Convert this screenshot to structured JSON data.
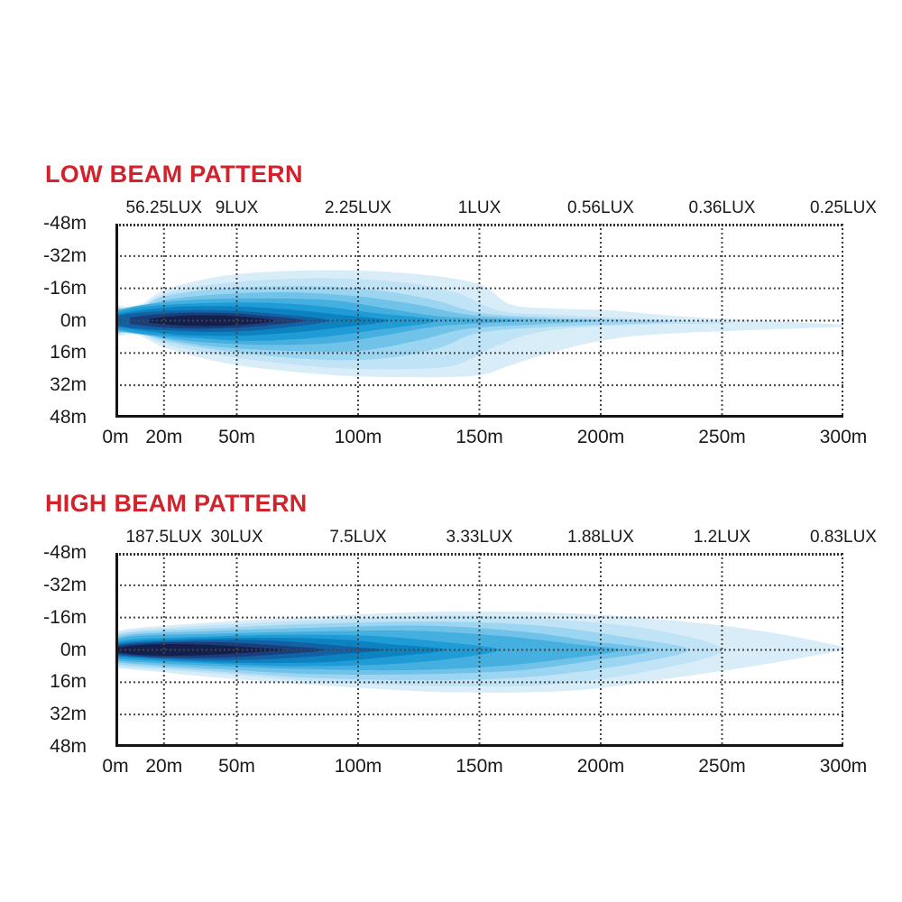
{
  "colors": {
    "background": "#ffffff",
    "title_red": "#d2222b",
    "text": "#1a1a1a",
    "grid": "#454545",
    "border_solid": "#141414",
    "border_dotted": "#333333"
  },
  "chart_data": [
    {
      "type": "area",
      "title": "LOW BEAM PATTERN",
      "top_axis": {
        "unit": "LUX",
        "labels": [
          "56.25LUX",
          "9LUX",
          "2.25LUX",
          "1LUX",
          "0.56LUX",
          "0.36LUX",
          "0.25LUX"
        ],
        "at_distance_m": [
          20,
          50,
          100,
          150,
          200,
          250,
          300
        ]
      },
      "x_axis": {
        "unit": "m",
        "tick_labels": [
          "0m",
          "20m",
          "50m",
          "100m",
          "150m",
          "200m",
          "250m",
          "300m"
        ],
        "tick_values_m": [
          0,
          20,
          50,
          100,
          150,
          200,
          250,
          300
        ],
        "grid_values_m": [
          20,
          50,
          100,
          150,
          200,
          250
        ]
      },
      "y_axis": {
        "unit": "m",
        "tick_labels": [
          "-48m",
          "-32m",
          "-16m",
          "0m",
          "16m",
          "32m",
          "48m"
        ],
        "tick_values_m": [
          -48,
          -32,
          -16,
          0,
          16,
          32,
          48
        ],
        "grid_values_m": [
          -32,
          -16,
          0,
          16,
          32
        ]
      },
      "xlim": [
        0,
        300
      ],
      "ylim": [
        -48,
        48
      ],
      "grid": true,
      "contours_format": "[distance_m, halfwidth_above_center_m, halfwidth_below_center_m]",
      "contours": [
        {
          "color": "#d9edf9",
          "profile": [
            [
              0,
              8,
              8
            ],
            [
              9,
              7,
              7
            ],
            [
              22,
              16,
              14
            ],
            [
              50,
              23,
              22
            ],
            [
              90,
              25,
              27
            ],
            [
              125,
              23,
              28
            ],
            [
              150,
              18,
              27
            ],
            [
              163,
              8,
              22
            ],
            [
              182,
              6,
              15
            ],
            [
              205,
              5,
              9
            ],
            [
              235,
              2,
              6
            ],
            [
              300,
              -2,
              3
            ]
          ]
        },
        {
          "color": "#c0e3f6",
          "profile": [
            [
              0,
              7,
              7
            ],
            [
              9,
              6,
              6
            ],
            [
              22,
              14,
              12
            ],
            [
              48,
              19,
              18
            ],
            [
              85,
              21,
              23
            ],
            [
              118,
              19,
              24
            ],
            [
              140,
              14,
              22
            ],
            [
              158,
              5,
              12
            ],
            [
              178,
              3,
              5
            ],
            [
              215,
              1,
              2
            ],
            [
              255,
              -1,
              1
            ]
          ]
        },
        {
          "color": "#9cd5f1",
          "profile": [
            [
              0,
              6.5,
              6.5
            ],
            [
              9,
              5.5,
              5.5
            ],
            [
              20,
              12,
              10
            ],
            [
              45,
              16,
              15
            ],
            [
              80,
              17,
              19
            ],
            [
              108,
              15,
              19
            ],
            [
              132,
              10,
              14
            ],
            [
              150,
              4,
              6
            ],
            [
              180,
              1.5,
              3
            ],
            [
              230,
              -0.5,
              0.5
            ]
          ]
        },
        {
          "color": "#70c2e9",
          "profile": [
            [
              0,
              6,
              6
            ],
            [
              9,
              5,
              5
            ],
            [
              20,
              10,
              9
            ],
            [
              42,
              13,
              13
            ],
            [
              72,
              14,
              15
            ],
            [
              100,
              12,
              15
            ],
            [
              124,
              8,
              10
            ],
            [
              145,
              3,
              4
            ],
            [
              172,
              1,
              2
            ],
            [
              200,
              0,
              0
            ]
          ]
        },
        {
          "color": "#45afe0",
          "profile": [
            [
              0,
              5,
              5
            ],
            [
              12,
              8,
              7
            ],
            [
              35,
              10.5,
              10.5
            ],
            [
              62,
              11,
              12
            ],
            [
              90,
              10,
              11
            ],
            [
              112,
              6,
              7
            ],
            [
              135,
              2,
              2.5
            ],
            [
              168,
              0,
              0
            ]
          ]
        },
        {
          "color": "#1f9cd6",
          "profile": [
            [
              0,
              4,
              4
            ],
            [
              12,
              7,
              6.5
            ],
            [
              32,
              8.5,
              8.5
            ],
            [
              56,
              9,
              10
            ],
            [
              82,
              7.5,
              8.5
            ],
            [
              105,
              4,
              5
            ],
            [
              132,
              0,
              0
            ]
          ]
        },
        {
          "color": "#0d82c0",
          "profile": [
            [
              0,
              3,
              3
            ],
            [
              12,
              5.5,
              5
            ],
            [
              28,
              7,
              7
            ],
            [
              50,
              7,
              7.5
            ],
            [
              72,
              5.5,
              6
            ],
            [
              92,
              3,
              3.5
            ],
            [
              112,
              0,
              0
            ]
          ]
        },
        {
          "color": "#1261a5",
          "profile": [
            [
              0,
              2.3,
              2.3
            ],
            [
              10,
              4,
              4
            ],
            [
              26,
              5,
              5
            ],
            [
              45,
              5,
              5.5
            ],
            [
              65,
              3.5,
              4
            ],
            [
              88,
              0,
              0
            ]
          ]
        },
        {
          "color": "#1a3d7c",
          "profile": [
            [
              6,
              1.6,
              1.6
            ],
            [
              16,
              3,
              3
            ],
            [
              30,
              3.9,
              3.9
            ],
            [
              48,
              3.6,
              3.6
            ],
            [
              62,
              2.3,
              2.3
            ],
            [
              78,
              0,
              0
            ]
          ]
        },
        {
          "color": "#13204d",
          "profile": [
            [
              14,
              1,
              1
            ],
            [
              24,
              2.2,
              2.2
            ],
            [
              36,
              2.7,
              2.7
            ],
            [
              50,
              2.2,
              2.2
            ],
            [
              66,
              0,
              0
            ]
          ]
        }
      ]
    },
    {
      "type": "area",
      "title": "HIGH BEAM PATTERN",
      "top_axis": {
        "unit": "LUX",
        "labels": [
          "187.5LUX",
          "30LUX",
          "7.5LUX",
          "3.33LUX",
          "1.88LUX",
          "1.2LUX",
          "0.83LUX"
        ],
        "at_distance_m": [
          20,
          50,
          100,
          150,
          200,
          250,
          300
        ]
      },
      "x_axis": {
        "unit": "m",
        "tick_labels": [
          "0m",
          "20m",
          "50m",
          "100m",
          "150m",
          "200m",
          "250m",
          "300m"
        ],
        "tick_values_m": [
          0,
          20,
          50,
          100,
          150,
          200,
          250,
          300
        ],
        "grid_values_m": [
          20,
          50,
          100,
          150,
          200,
          250
        ]
      },
      "y_axis": {
        "unit": "m",
        "tick_labels": [
          "-48m",
          "-32m",
          "-16m",
          "0m",
          "16m",
          "32m",
          "48m"
        ],
        "tick_values_m": [
          -48,
          -32,
          -16,
          0,
          16,
          32,
          48
        ],
        "grid_values_m": [
          -32,
          -16,
          0,
          16,
          32
        ]
      },
      "xlim": [
        0,
        300
      ],
      "ylim": [
        -48,
        48
      ],
      "grid": true,
      "contours_format": "[distance_m, halfwidth_above_center_m, halfwidth_below_center_m]",
      "contours": [
        {
          "color": "#d9edf9",
          "profile": [
            [
              0,
              9,
              9
            ],
            [
              10,
              11,
              10
            ],
            [
              45,
              14,
              14
            ],
            [
              90,
              17,
              18
            ],
            [
              140,
              19,
              21
            ],
            [
              190,
              18,
              20
            ],
            [
              235,
              14,
              13
            ],
            [
              268,
              9,
              7
            ],
            [
              300,
              1.5,
              0
            ]
          ]
        },
        {
          "color": "#c0e3f6",
          "profile": [
            [
              0,
              8,
              8
            ],
            [
              10,
              10,
              9
            ],
            [
              45,
              12.5,
              12
            ],
            [
              88,
              15,
              16
            ],
            [
              138,
              17,
              18
            ],
            [
              182,
              15,
              17
            ],
            [
              222,
              10,
              10
            ],
            [
              250,
              0,
              0
            ]
          ]
        },
        {
          "color": "#9cd5f1",
          "profile": [
            [
              0,
              7,
              7
            ],
            [
              10,
              9,
              8
            ],
            [
              45,
              11,
              11
            ],
            [
              85,
              13,
              14
            ],
            [
              132,
              14,
              15
            ],
            [
              175,
              12,
              13
            ],
            [
              212,
              6,
              7
            ],
            [
              236,
              0,
              0
            ]
          ]
        },
        {
          "color": "#70c2e9",
          "profile": [
            [
              0,
              6,
              6
            ],
            [
              10,
              8,
              7
            ],
            [
              42,
              9.5,
              9.5
            ],
            [
              82,
              11,
              12
            ],
            [
              128,
              12,
              12
            ],
            [
              168,
              9,
              10
            ],
            [
              198,
              4,
              5
            ],
            [
              222,
              0,
              0
            ]
          ]
        },
        {
          "color": "#45afe0",
          "profile": [
            [
              0,
              5,
              5
            ],
            [
              10,
              7,
              6
            ],
            [
              40,
              8,
              8
            ],
            [
              78,
              9,
              9.5
            ],
            [
              122,
              9.5,
              10
            ],
            [
              158,
              7,
              8
            ],
            [
              188,
              3,
              4
            ],
            [
              208,
              0,
              0
            ]
          ]
        },
        {
          "color": "#1f9cd6",
          "profile": [
            [
              0,
              4,
              4
            ],
            [
              10,
              5.5,
              5
            ],
            [
              35,
              6.5,
              6.5
            ],
            [
              68,
              7.5,
              8
            ],
            [
              104,
              7,
              7.5
            ],
            [
              134,
              4,
              5
            ],
            [
              158,
              0,
              0
            ]
          ]
        },
        {
          "color": "#0d82c0",
          "profile": [
            [
              0,
              3.2,
              3.2
            ],
            [
              10,
              4.5,
              4
            ],
            [
              30,
              5.5,
              5.5
            ],
            [
              58,
              6,
              6.5
            ],
            [
              88,
              5.5,
              6
            ],
            [
              112,
              3,
              3.5
            ],
            [
              136,
              0,
              0
            ]
          ]
        },
        {
          "color": "#1261a5",
          "profile": [
            [
              0,
              2.5,
              2.5
            ],
            [
              10,
              3.8,
              3.5
            ],
            [
              27,
              4.5,
              4.5
            ],
            [
              50,
              5,
              5
            ],
            [
              73,
              4,
              4
            ],
            [
              93,
              2,
              2
            ],
            [
              110,
              0,
              0
            ]
          ]
        },
        {
          "color": "#1a3d7c",
          "profile": [
            [
              0,
              1.8,
              1.8
            ],
            [
              8,
              3,
              3
            ],
            [
              23,
              3.8,
              3.8
            ],
            [
              44,
              3.8,
              3.8
            ],
            [
              63,
              2.5,
              2.5
            ],
            [
              86,
              0,
              0
            ]
          ]
        },
        {
          "color": "#13204d",
          "profile": [
            [
              1,
              1.2,
              1.2
            ],
            [
              10,
              2.4,
              2.4
            ],
            [
              23,
              2.9,
              2.9
            ],
            [
              41,
              2.4,
              2.4
            ],
            [
              56,
              1.2,
              1.2
            ],
            [
              70,
              0,
              0
            ]
          ]
        }
      ]
    }
  ]
}
